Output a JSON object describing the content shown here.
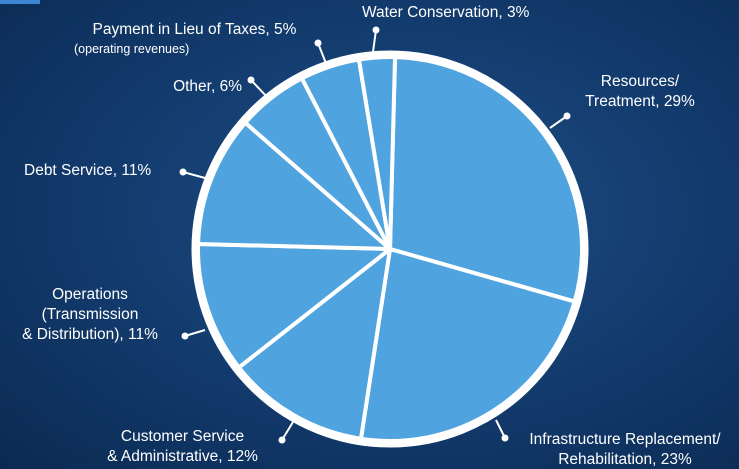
{
  "chart_data": {
    "type": "pie",
    "slices": [
      {
        "label": "Resources/ Treatment",
        "value": 29
      },
      {
        "label": "Infrastructure Replacement/ Rehabilitation",
        "value": 23
      },
      {
        "label": "Customer Service & Administrative",
        "value": 12
      },
      {
        "label": "Operations (Transmission & Distribution)",
        "value": 11
      },
      {
        "label": "Debt Service",
        "value": 11
      },
      {
        "label": "Other",
        "value": 6
      },
      {
        "label": "Payment in Lieu of Taxes",
        "value": 5,
        "note": "(operating revenues)"
      },
      {
        "label": "Water Conservation",
        "value": 3
      }
    ],
    "colors": {
      "slice": "#4fa3de",
      "edge": "#ffffff",
      "background": "#123a6c"
    }
  },
  "labels": {
    "water": "Water Conservation, 3%",
    "pilot": "Payment in Lieu of Taxes, 5%",
    "pilot_sub": "(operating revenues)",
    "other": "Other, 6%",
    "debt": "Debt Service, 11%",
    "ops_1": "Operations",
    "ops_2": "(Transmission",
    "ops_3": "& Distribution), 11%",
    "cust_1": "Customer Service",
    "cust_2": "& Administrative, 12%",
    "infra_1": "Infrastructure Replacement/",
    "infra_2": "Rehabilitation, 23%",
    "res_1": "Resources/",
    "res_2": "Treatment, 29%"
  }
}
